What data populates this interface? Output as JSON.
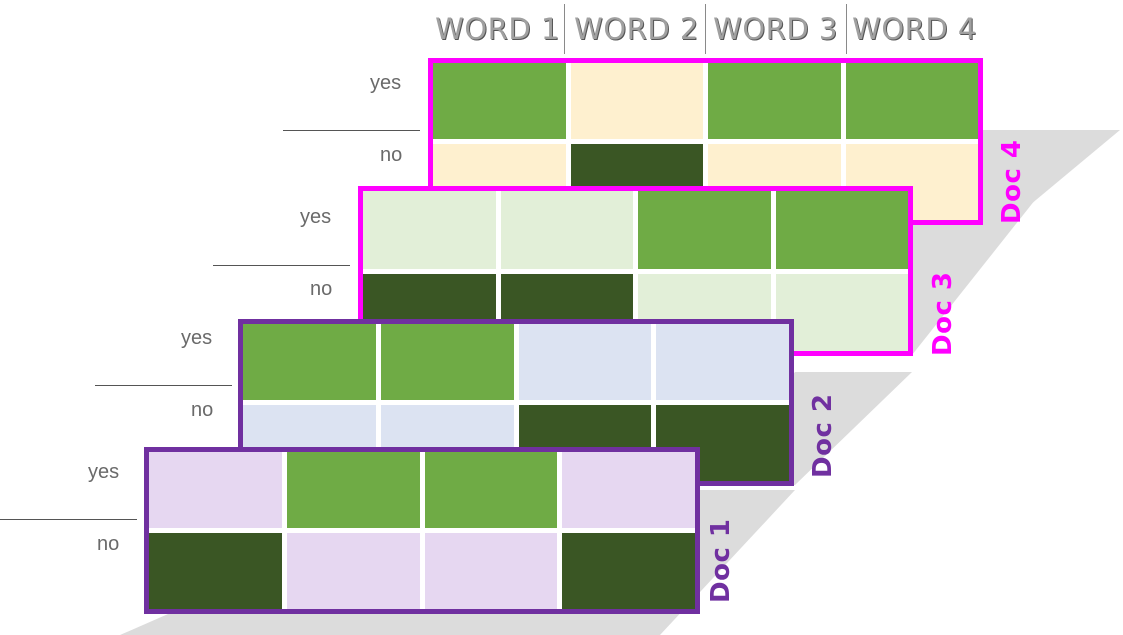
{
  "headers": [
    "WORD 1",
    "WORD 2",
    "WORD 3",
    "WORD 4"
  ],
  "row_labels": {
    "yes": "yes",
    "no": "no"
  },
  "colors": {
    "dark_green": "#3a5624",
    "mid_green": "#6fab45",
    "doc4_light": "#fef0cf",
    "doc3_light": "#e2efd8",
    "doc2_light": "#dce3f2",
    "doc1_light": "#e6d7f1",
    "magenta": "#ff00ff",
    "purple": "#7030a0",
    "plane": "#dcdcdc"
  },
  "docs": [
    {
      "id": "doc4",
      "label": "Doc 4",
      "frame_color": "magenta",
      "light": "doc4_light",
      "rows": [
        [
          "G",
          "L",
          "G",
          "G"
        ],
        [
          "L",
          "D",
          "L",
          "L"
        ]
      ]
    },
    {
      "id": "doc3",
      "label": "Doc 3",
      "frame_color": "magenta",
      "light": "doc3_light",
      "rows": [
        [
          "L",
          "L",
          "G",
          "G"
        ],
        [
          "D",
          "D",
          "L",
          "L"
        ]
      ]
    },
    {
      "id": "doc2",
      "label": "Doc 2",
      "frame_color": "purple",
      "light": "doc2_light",
      "rows": [
        [
          "G",
          "G",
          "L",
          "L"
        ],
        [
          "L",
          "L",
          "D",
          "D"
        ]
      ]
    },
    {
      "id": "doc1",
      "label": "Doc 1",
      "frame_color": "purple",
      "light": "doc1_light",
      "rows": [
        [
          "L",
          "G",
          "G",
          "L"
        ],
        [
          "D",
          "L",
          "L",
          "D"
        ]
      ]
    }
  ]
}
